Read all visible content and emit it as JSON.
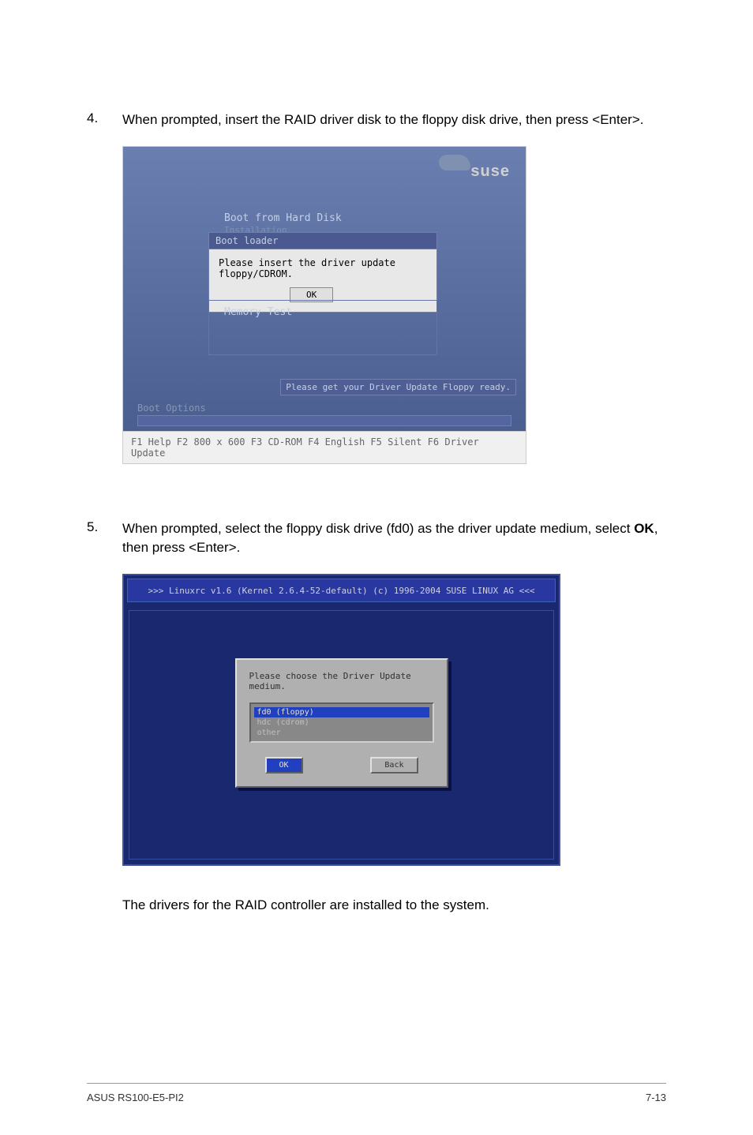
{
  "step4": {
    "num": "4.",
    "text": "When prompted, insert the RAID driver disk to the floppy disk drive, then press <Enter>."
  },
  "ss1": {
    "logo": "suse",
    "boot_from": "Boot from Hard Disk",
    "installation": "Installation",
    "boot_loader_title": "Boot loader",
    "dialog_msg": "Please insert the driver update floppy/CDROM.",
    "ok": "OK",
    "memory_test": "Memory Test",
    "ready": "Please get your Driver Update Floppy ready.",
    "boot_options": "Boot Options",
    "fkeys": "F1 Help  F2 800 x 600  F3 CD-ROM  F4 English  F5 Silent  F6 Driver Update"
  },
  "step5": {
    "num": "5.",
    "text_a": "When prompted, select the floppy disk drive (fd0) as the driver update medium, select ",
    "ok": "OK",
    "text_b": ", then press <Enter>."
  },
  "ss2": {
    "linuxrc": ">>> Linuxrc v1.6 (Kernel 2.6.4-52-default) (c) 1996-2004 SUSE LINUX AG <<<",
    "dialog_msg": "Please choose the Driver Update medium.",
    "item_sel": "fd0 (floppy)",
    "item2": "hdc (cdrom)",
    "item3": "other",
    "ok": "OK",
    "back": "Back"
  },
  "result": "The drivers for the RAID controller are installed to the system.",
  "footer": {
    "left": "ASUS RS100-E5-PI2",
    "right": "7-13"
  }
}
